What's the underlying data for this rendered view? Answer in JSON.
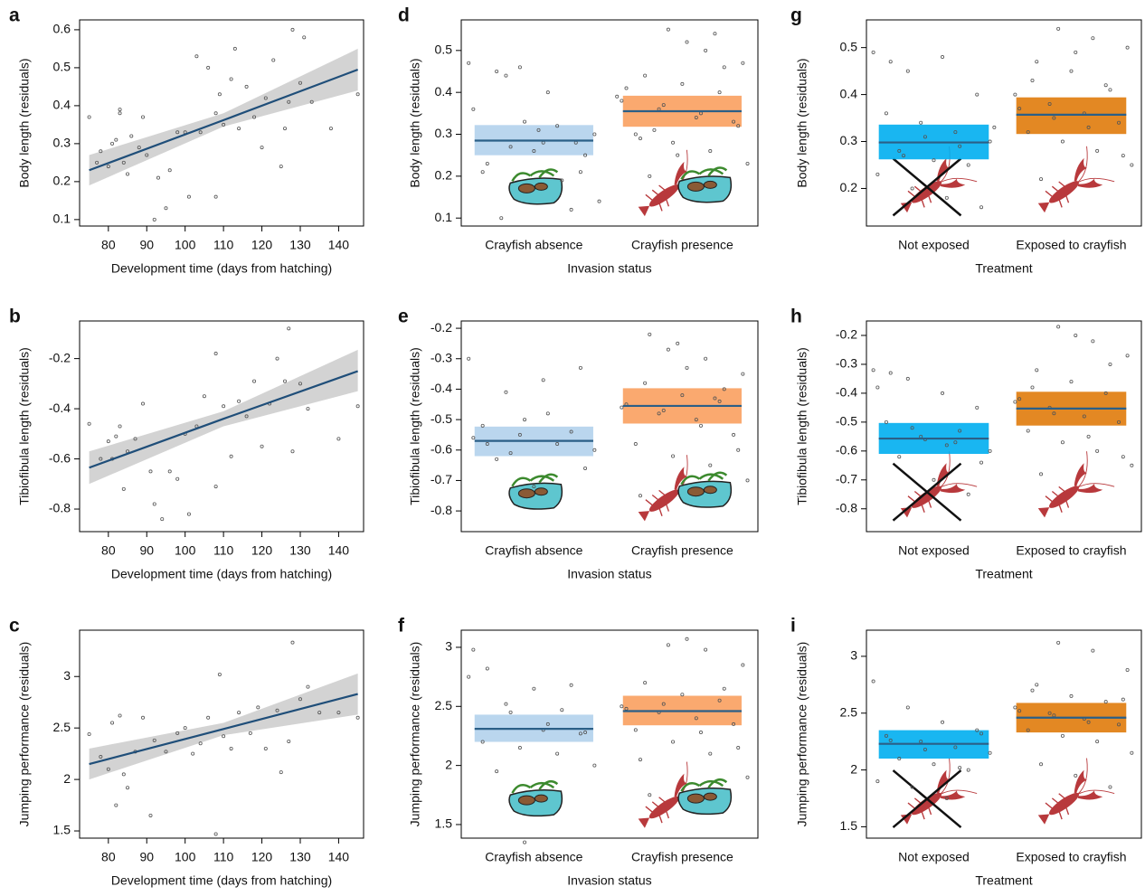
{
  "chart_data": [
    {
      "type": "scatter",
      "panel": "a",
      "xlabel": "Development time (days from hatching)",
      "ylabel": "Body length (residuals)",
      "xlim": [
        72.5,
        146.5
      ],
      "ylim": [
        0.083,
        0.626
      ],
      "xticks": [
        80,
        90,
        100,
        110,
        120,
        130,
        140
      ],
      "yticks": [
        0.1,
        0.2,
        0.3,
        0.4,
        0.5,
        0.6
      ],
      "point_color": "#555555",
      "fit_color": "#1f4e79",
      "band_color": "#d3d3d3",
      "x": [
        75,
        77,
        78,
        80,
        81,
        82,
        83,
        83,
        84,
        85,
        86,
        88,
        89,
        90,
        92,
        93,
        95,
        96,
        98,
        100,
        101,
        103,
        104,
        106,
        108,
        108,
        109,
        110,
        112,
        113,
        114,
        116,
        118,
        120,
        121,
        123,
        125,
        126,
        127,
        128,
        130,
        131,
        133,
        138,
        145
      ],
      "values": [
        0.37,
        0.25,
        0.28,
        0.24,
        0.3,
        0.31,
        0.38,
        0.39,
        0.25,
        0.22,
        0.32,
        0.29,
        0.37,
        0.27,
        0.1,
        0.21,
        0.13,
        0.23,
        0.33,
        0.33,
        0.16,
        0.53,
        0.33,
        0.5,
        0.16,
        0.38,
        0.43,
        0.35,
        0.47,
        0.55,
        0.34,
        0.45,
        0.37,
        0.29,
        0.42,
        0.52,
        0.24,
        0.34,
        0.41,
        0.6,
        0.46,
        0.58,
        0.41,
        0.34,
        0.43
      ],
      "fit": {
        "x": [
          75,
          110,
          145
        ],
        "values": [
          0.23,
          0.362,
          0.495
        ],
        "lower": [
          0.19,
          0.345,
          0.44
        ],
        "upper": [
          0.27,
          0.38,
          0.55
        ]
      }
    },
    {
      "type": "scatter",
      "panel": "b",
      "xlabel": "Development time (days from hatching)",
      "ylabel": "Tibiofibula length (residuals)",
      "xlim": [
        72.5,
        146.5
      ],
      "ylim": [
        -0.89,
        -0.05
      ],
      "xticks": [
        80,
        90,
        100,
        110,
        120,
        130,
        140
      ],
      "yticks": [
        -0.8,
        -0.6,
        -0.4,
        -0.2
      ],
      "point_color": "#555555",
      "fit_color": "#1f4e79",
      "band_color": "#d3d3d3",
      "x": [
        75,
        78,
        80,
        81,
        82,
        83,
        84,
        85,
        87,
        89,
        91,
        92,
        94,
        96,
        98,
        100,
        101,
        103,
        105,
        108,
        108,
        110,
        112,
        114,
        116,
        118,
        120,
        122,
        124,
        126,
        127,
        128,
        130,
        132,
        140,
        145
      ],
      "values": [
        -0.46,
        -0.6,
        -0.53,
        -0.6,
        -0.51,
        -0.47,
        -0.72,
        -0.57,
        -0.52,
        -0.38,
        -0.65,
        -0.78,
        -0.84,
        -0.65,
        -0.68,
        -0.5,
        -0.82,
        -0.47,
        -0.35,
        -0.18,
        -0.71,
        -0.39,
        -0.59,
        -0.37,
        -0.43,
        -0.29,
        -0.55,
        -0.38,
        -0.2,
        -0.29,
        -0.08,
        -0.57,
        -0.3,
        -0.4,
        -0.52,
        -0.39
      ],
      "fit": {
        "x": [
          75,
          110,
          145
        ],
        "values": [
          -0.635,
          -0.44,
          -0.25
        ],
        "lower": [
          -0.7,
          -0.47,
          -0.33
        ],
        "upper": [
          -0.57,
          -0.41,
          -0.165
        ]
      }
    },
    {
      "type": "scatter",
      "panel": "c",
      "xlabel": "Development time (days from hatching)",
      "ylabel": "Jumping performance (residuals)",
      "xlim": [
        72.5,
        146.5
      ],
      "ylim": [
        1.43,
        3.45
      ],
      "xticks": [
        80,
        90,
        100,
        110,
        120,
        130,
        140
      ],
      "yticks": [
        1.5,
        2.0,
        2.5,
        3.0
      ],
      "point_color": "#555555",
      "fit_color": "#1f4e79",
      "band_color": "#d3d3d3",
      "x": [
        75,
        78,
        80,
        81,
        82,
        83,
        84,
        85,
        87,
        89,
        91,
        92,
        95,
        98,
        100,
        102,
        104,
        106,
        108,
        109,
        110,
        112,
        114,
        117,
        119,
        121,
        124,
        125,
        127,
        128,
        130,
        132,
        135,
        140,
        145
      ],
      "values": [
        2.44,
        2.22,
        2.1,
        2.55,
        1.75,
        2.62,
        2.05,
        1.92,
        2.27,
        2.6,
        1.65,
        2.38,
        2.27,
        2.45,
        2.5,
        2.25,
        2.35,
        2.6,
        1.47,
        3.02,
        2.42,
        2.3,
        2.65,
        2.45,
        2.7,
        2.3,
        2.67,
        2.07,
        2.37,
        3.33,
        2.78,
        2.9,
        2.65,
        2.65,
        2.6
      ],
      "fit": {
        "x": [
          75,
          110,
          145
        ],
        "values": [
          2.15,
          2.49,
          2.83
        ],
        "lower": [
          2.0,
          2.43,
          2.63
        ],
        "upper": [
          2.3,
          2.55,
          3.03
        ]
      }
    },
    {
      "type": "strip",
      "panel": "d",
      "xlabel": "Invasion status",
      "ylabel": "Body length (residuals)",
      "ylim": [
        0.081,
        0.573
      ],
      "yticks": [
        0.1,
        0.2,
        0.3,
        0.4,
        0.5
      ],
      "point_color": "#555555",
      "line_color": "#2b5f87",
      "categories": [
        "Crayfish absence",
        "Crayfish presence"
      ],
      "colors": [
        "#b3d1ec",
        "#f9a05f"
      ],
      "means": [
        0.285,
        0.355
      ],
      "lower": [
        0.25,
        0.318
      ],
      "upper": [
        0.322,
        0.392
      ],
      "points": [
        [
          0.47,
          0.44,
          0.28,
          0.21,
          0.21,
          0.46,
          0.32,
          0.3,
          0.45,
          0.26,
          0.12,
          0.36,
          0.27,
          0.4,
          0.25,
          0.23,
          0.33,
          0.19,
          0.14,
          0.1,
          0.31,
          0.28
        ],
        [
          0.55,
          0.5,
          0.47,
          0.44,
          0.42,
          0.4,
          0.38,
          0.36,
          0.34,
          0.33,
          0.3,
          0.28,
          0.26,
          0.23,
          0.2,
          0.52,
          0.46,
          0.41,
          0.37,
          0.35,
          0.32,
          0.29,
          0.25,
          0.54,
          0.39,
          0.31
        ]
      ]
    },
    {
      "type": "strip",
      "panel": "e",
      "xlabel": "Invasion status",
      "ylabel": "Tibiofibula length (residuals)",
      "ylim": [
        -0.868,
        -0.176
      ],
      "yticks": [
        -0.8,
        -0.7,
        -0.6,
        -0.5,
        -0.4,
        -0.3,
        -0.2
      ],
      "point_color": "#555555",
      "line_color": "#2b5f87",
      "categories": [
        "Crayfish absence",
        "Crayfish presence"
      ],
      "colors": [
        "#b3d1ec",
        "#f9a05f"
      ],
      "means": [
        -0.57,
        -0.455
      ],
      "lower": [
        -0.62,
        -0.513
      ],
      "upper": [
        -0.523,
        -0.397
      ],
      "points": [
        [
          -0.3,
          -0.41,
          -0.37,
          -0.33,
          -0.52,
          -0.55,
          -0.58,
          -0.6,
          -0.63,
          -0.72,
          -0.54,
          -0.56,
          -0.61,
          -0.48,
          -0.66,
          -0.58,
          -0.5
        ],
        [
          -0.27,
          -0.3,
          -0.35,
          -0.38,
          -0.42,
          -0.44,
          -0.46,
          -0.48,
          -0.5,
          -0.55,
          -0.58,
          -0.62,
          -0.65,
          -0.7,
          -0.22,
          -0.33,
          -0.4,
          -0.45,
          -0.47,
          -0.52,
          -0.6,
          -0.75,
          -0.25,
          -0.43
        ]
      ]
    },
    {
      "type": "strip",
      "panel": "f",
      "xlabel": "Invasion status",
      "ylabel": "Jumping performance (residuals)",
      "ylim": [
        1.385,
        3.145
      ],
      "yticks": [
        1.5,
        2.0,
        2.5,
        3.0
      ],
      "point_color": "#555555",
      "line_color": "#2b5f87",
      "categories": [
        "Crayfish absence",
        "Crayfish presence"
      ],
      "colors": [
        "#b3d1ec",
        "#f9a05f"
      ],
      "means": [
        2.31,
        2.46
      ],
      "lower": [
        2.2,
        2.34
      ],
      "upper": [
        2.43,
        2.59
      ],
      "points": [
        [
          2.75,
          2.52,
          2.3,
          2.27,
          2.2,
          2.15,
          2.1,
          2.0,
          1.95,
          2.65,
          2.68,
          2.98,
          2.45,
          2.35,
          2.28,
          2.82,
          1.35,
          2.47
        ],
        [
          3.02,
          2.98,
          2.85,
          2.7,
          2.6,
          2.55,
          2.5,
          2.45,
          2.4,
          2.35,
          2.3,
          2.2,
          2.1,
          1.9,
          1.75,
          3.07,
          2.65,
          2.48,
          2.52,
          2.28,
          2.15,
          2.05
        ]
      ]
    },
    {
      "type": "strip",
      "panel": "g",
      "xlabel": "Treatment",
      "ylabel": "Body length (residuals)",
      "ylim": [
        0.12,
        0.559
      ],
      "yticks": [
        0.2,
        0.3,
        0.4,
        0.5
      ],
      "point_color": "#555555",
      "line_color": "#2b5f87",
      "categories": [
        "Not exposed",
        "Exposed to crayfish"
      ],
      "colors": [
        "#00aeef",
        "#e07b0b"
      ],
      "means": [
        0.298,
        0.357
      ],
      "lower": [
        0.262,
        0.316
      ],
      "upper": [
        0.336,
        0.394
      ],
      "points": [
        [
          0.49,
          0.45,
          0.48,
          0.4,
          0.36,
          0.34,
          0.32,
          0.3,
          0.28,
          0.26,
          0.25,
          0.23,
          0.2,
          0.18,
          0.16,
          0.47,
          0.31,
          0.29,
          0.33,
          0.27
        ],
        [
          0.54,
          0.52,
          0.5,
          0.47,
          0.45,
          0.42,
          0.4,
          0.38,
          0.36,
          0.34,
          0.32,
          0.3,
          0.28,
          0.25,
          0.22,
          0.49,
          0.41,
          0.37,
          0.35,
          0.33,
          0.27,
          0.43
        ]
      ]
    },
    {
      "type": "strip",
      "panel": "h",
      "xlabel": "Treatment",
      "ylabel": "Tibiofibula length (residuals)",
      "ylim": [
        -0.879,
        -0.15
      ],
      "yticks": [
        -0.8,
        -0.7,
        -0.6,
        -0.5,
        -0.4,
        -0.3,
        -0.2
      ],
      "point_color": "#555555",
      "line_color": "#2b5f87",
      "categories": [
        "Not exposed",
        "Exposed to crayfish"
      ],
      "colors": [
        "#00aeef",
        "#e07b0b"
      ],
      "means": [
        -0.557,
        -0.453
      ],
      "lower": [
        -0.61,
        -0.512
      ],
      "upper": [
        -0.503,
        -0.395
      ],
      "points": [
        [
          -0.32,
          -0.35,
          -0.4,
          -0.45,
          -0.5,
          -0.55,
          -0.57,
          -0.6,
          -0.62,
          -0.7,
          -0.75,
          -0.38,
          -0.52,
          -0.58,
          -0.64,
          -0.33,
          -0.56,
          -0.53
        ],
        [
          -0.17,
          -0.22,
          -0.27,
          -0.32,
          -0.36,
          -0.4,
          -0.43,
          -0.45,
          -0.48,
          -0.5,
          -0.53,
          -0.57,
          -0.6,
          -0.65,
          -0.68,
          -0.2,
          -0.3,
          -0.42,
          -0.47,
          -0.55,
          -0.62,
          -0.38
        ]
      ]
    },
    {
      "type": "strip",
      "panel": "i",
      "xlabel": "Treatment",
      "ylabel": "Jumping performance (residuals)",
      "ylim": [
        1.4,
        3.23
      ],
      "yticks": [
        1.5,
        2.0,
        2.5,
        3.0
      ],
      "point_color": "#555555",
      "line_color": "#2b5f87",
      "categories": [
        "Not exposed",
        "Exposed to crayfish"
      ],
      "colors": [
        "#00aeef",
        "#e07b0b"
      ],
      "means": [
        2.23,
        2.46
      ],
      "lower": [
        2.1,
        2.33
      ],
      "upper": [
        2.35,
        2.59
      ],
      "points": [
        [
          2.78,
          2.55,
          2.42,
          2.35,
          2.3,
          2.25,
          2.2,
          2.15,
          2.1,
          2.05,
          2.0,
          1.9,
          1.85,
          1.75,
          2.32,
          2.26,
          2.18,
          2.02
        ],
        [
          3.12,
          3.05,
          2.88,
          2.75,
          2.65,
          2.6,
          2.55,
          2.5,
          2.45,
          2.4,
          2.35,
          2.3,
          2.25,
          2.15,
          2.05,
          1.95,
          1.85,
          2.52,
          2.48,
          2.42,
          2.62,
          2.7
        ]
      ]
    }
  ]
}
